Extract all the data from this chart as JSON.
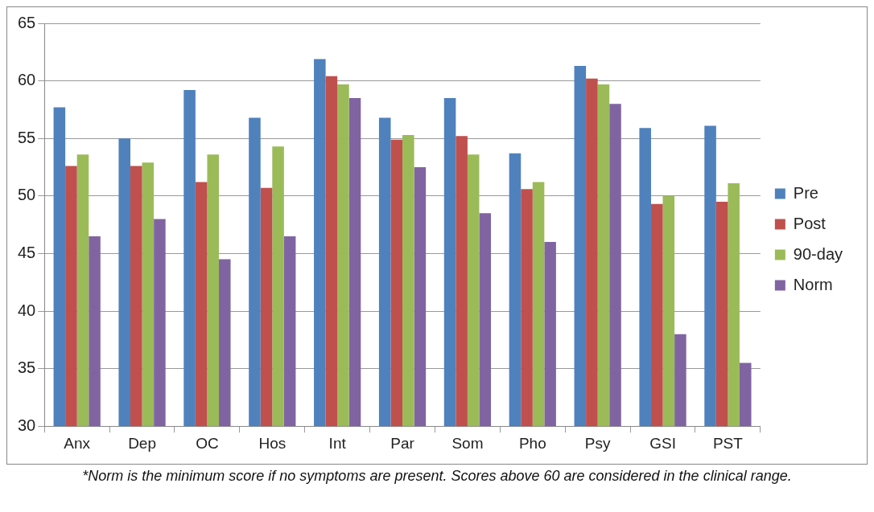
{
  "chart_data": {
    "type": "bar",
    "categories": [
      "Anx",
      "Dep",
      "OC",
      "Hos",
      "Int",
      "Par",
      "Som",
      "Pho",
      "Psy",
      "GSI",
      "PST"
    ],
    "series": [
      {
        "name": "Pre",
        "color": "#4f81bd",
        "values": [
          57.7,
          55.0,
          59.2,
          56.8,
          61.9,
          56.8,
          58.5,
          53.7,
          61.3,
          55.9,
          56.1
        ]
      },
      {
        "name": "Post",
        "color": "#c0504d",
        "values": [
          52.6,
          52.6,
          51.2,
          50.7,
          60.4,
          54.9,
          55.2,
          50.6,
          60.2,
          49.3,
          49.5
        ]
      },
      {
        "name": "90-day",
        "color": "#9bbb59",
        "values": [
          53.6,
          52.9,
          53.6,
          54.3,
          59.7,
          55.3,
          53.6,
          51.2,
          59.7,
          50.0,
          51.1
        ]
      },
      {
        "name": "Norm",
        "color": "#8064a2",
        "values": [
          46.5,
          48.0,
          44.5,
          46.5,
          58.5,
          52.5,
          48.5,
          46.0,
          58.0,
          38.0,
          35.5
        ]
      }
    ],
    "ylim": [
      30,
      65
    ],
    "yticks": [
      30,
      35,
      40,
      45,
      50,
      55,
      60,
      65
    ],
    "grid": "y",
    "legend": "right",
    "annotations": [
      "*Norm is the minimum score if no symptoms are present. Scores above 60 are considered in the clinical range."
    ]
  }
}
